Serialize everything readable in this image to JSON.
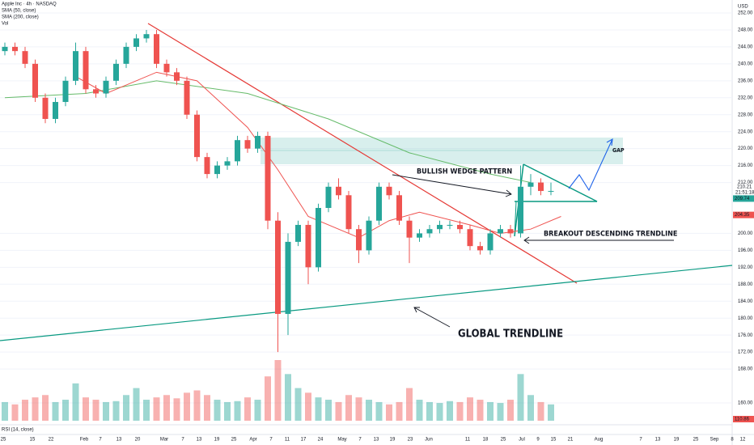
{
  "chart_data": {
    "type": "candlestick",
    "title": "Apple Inc · 4h · NASDAQ",
    "currency": "USD",
    "volume_label": "Vol",
    "rsi_label": "RSI (14, close)",
    "rsi_value": 110.86,
    "up_color": "#26a69a",
    "down_color": "#ef5350",
    "open": [
      243,
      244,
      243,
      240,
      232,
      227,
      231,
      236,
      243,
      234,
      233,
      236,
      240,
      244,
      246,
      247,
      240,
      238,
      236,
      228,
      218,
      214,
      216,
      217,
      222,
      220,
      223,
      203,
      181,
      198,
      202,
      192,
      206,
      211,
      209,
      201,
      196,
      203,
      211,
      209,
      203,
      199,
      200,
      201,
      202,
      202,
      201,
      197,
      196,
      200,
      201,
      200,
      211,
      212,
      210
    ],
    "high": [
      245,
      245,
      244,
      241,
      233,
      232,
      237,
      245,
      244,
      235,
      237,
      241,
      245,
      247,
      248,
      248,
      241,
      239,
      237,
      229,
      219,
      217,
      218,
      223,
      223,
      224,
      224,
      205,
      200,
      203,
      203,
      207,
      212,
      213,
      210,
      202,
      204,
      212,
      212,
      210,
      204,
      201,
      202,
      203,
      203,
      203,
      202,
      198,
      201,
      202,
      202,
      216,
      214,
      213,
      212
    ],
    "low": [
      242,
      242,
      239,
      231,
      226,
      226,
      230,
      235,
      233,
      232,
      232,
      235,
      239,
      243,
      245,
      239,
      237,
      235,
      227,
      217,
      213,
      213,
      215,
      216,
      219,
      219,
      201,
      172,
      176,
      197,
      188,
      191,
      205,
      208,
      200,
      193,
      195,
      202,
      208,
      202,
      193,
      198,
      199,
      200,
      201,
      200,
      196,
      195,
      195,
      199,
      199,
      199,
      209,
      209,
      209
    ],
    "close": [
      244,
      243,
      240,
      232,
      227,
      231,
      236,
      243,
      234,
      233,
      236,
      240,
      244,
      246,
      247,
      240,
      238,
      236,
      228,
      218,
      214,
      216,
      217,
      222,
      220,
      223,
      203,
      181,
      198,
      202,
      192,
      206,
      211,
      209,
      201,
      196,
      203,
      211,
      209,
      203,
      199,
      200,
      201,
      202,
      202,
      201,
      197,
      196,
      200,
      201,
      200,
      211,
      212,
      210,
      210
    ],
    "volume": [
      40,
      35,
      45,
      50,
      55,
      40,
      45,
      80,
      50,
      45,
      40,
      42,
      55,
      70,
      45,
      50,
      55,
      48,
      60,
      65,
      55,
      45,
      40,
      42,
      50,
      45,
      95,
      130,
      100,
      70,
      60,
      50,
      45,
      40,
      55,
      50,
      45,
      40,
      35,
      40,
      70,
      45,
      40,
      38,
      42,
      40,
      50,
      45,
      40,
      38,
      45,
      100,
      55,
      40,
      35
    ],
    "sma50": {
      "name": "SMA (50, close)",
      "color": "#ef5350",
      "x": [
        7,
        10,
        15,
        19,
        24,
        27,
        30,
        35,
        38,
        41,
        46,
        49,
        52,
        55
      ],
      "values": [
        237,
        233,
        238,
        236,
        225,
        215,
        204,
        199,
        203,
        205,
        202,
        200,
        201,
        204
      ]
    },
    "sma200": {
      "name": "SMA (200, close)",
      "color": "#66bb6a",
      "x": [
        0,
        8,
        15,
        24,
        32,
        40,
        48,
        52
      ],
      "values": [
        232,
        233,
        236,
        233,
        227,
        219,
        214,
        212
      ]
    },
    "last_price": 209.74,
    "sma50_last": 204.35,
    "bid_price": 210.21,
    "countdown": "21:51:18",
    "ylim": [
      160,
      252
    ],
    "yticks": [
      {
        "value": 160,
        "label": "160.00"
      },
      {
        "value": 168,
        "label": "168.00"
      },
      {
        "value": 172,
        "label": "172.00"
      },
      {
        "value": 176,
        "label": "176.00"
      },
      {
        "value": 180,
        "label": "180.00"
      },
      {
        "value": 184,
        "label": "184.00"
      },
      {
        "value": 188,
        "label": "188.00"
      },
      {
        "value": 192,
        "label": "192.00"
      },
      {
        "value": 196,
        "label": "196.00"
      },
      {
        "value": 200,
        "label": "200.00"
      },
      {
        "value": 212,
        "label": "212.00"
      },
      {
        "value": 216,
        "label": "216.00"
      },
      {
        "value": 220,
        "label": "220.00"
      },
      {
        "value": 224,
        "label": "224.00"
      },
      {
        "value": 228,
        "label": "228.00"
      },
      {
        "value": 232,
        "label": "232.00"
      },
      {
        "value": 236,
        "label": "236.00"
      },
      {
        "value": 240,
        "label": "240.00"
      },
      {
        "value": 244,
        "label": "244.00"
      },
      {
        "value": 248,
        "label": "248.00"
      },
      {
        "value": 252,
        "label": "252.00"
      }
    ],
    "x_labels": [
      "25",
      "15",
      "22",
      "Feb",
      "7",
      "13",
      "20",
      "Mar",
      "7",
      "13",
      "19",
      "25",
      "Apr",
      "7",
      "11",
      "17",
      "24",
      "May",
      "7",
      "13",
      "19",
      "23",
      "Jun",
      "11",
      "18",
      "25",
      "Jul",
      "9",
      "15",
      "21",
      "Aug",
      "7",
      "13",
      "19",
      "25",
      "Sep",
      "8",
      "12"
    ],
    "annotations": [
      "BULLISH WEDGE PATTERN",
      "GAP",
      "BREAKOUT DESCENDING TRENDLINE",
      "GLOBAL TRENDLINE"
    ]
  }
}
